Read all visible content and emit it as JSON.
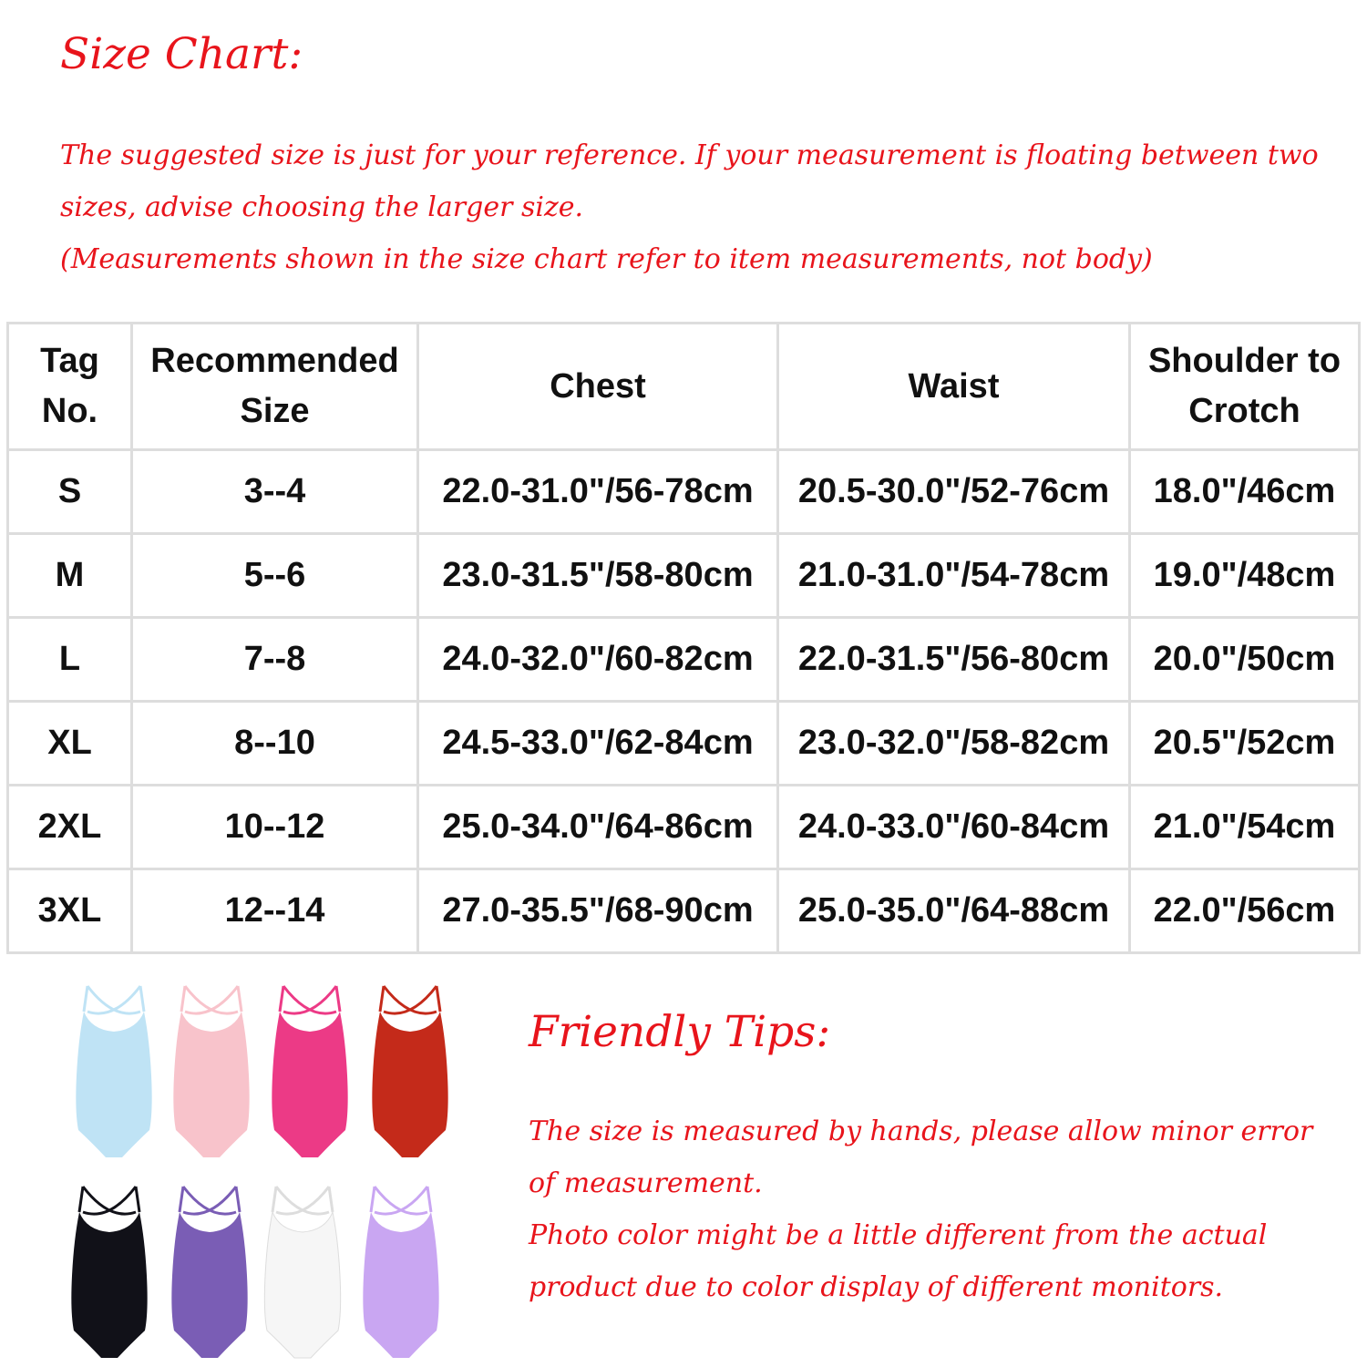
{
  "title": "Size Chart:",
  "intro": [
    "The suggested size is just for your reference. If your measurement is floating between two",
    "sizes, advise choosing the larger size.",
    "(Measurements shown in the size chart refer to item measurements, not body)"
  ],
  "table": {
    "headers": [
      "Tag No.",
      "Recommended Size",
      "Chest",
      "Waist",
      "Shoulder to Crotch"
    ],
    "rows": [
      [
        "S",
        "3--4",
        "22.0-31.0\"/56-78cm",
        "20.5-30.0\"/52-76cm",
        "18.0\"/46cm"
      ],
      [
        "M",
        "5--6",
        "23.0-31.5\"/58-80cm",
        "21.0-31.0\"/54-78cm",
        "19.0\"/48cm"
      ],
      [
        "L",
        "7--8",
        "24.0-32.0\"/60-82cm",
        "22.0-31.5\"/56-80cm",
        "20.0\"/50cm"
      ],
      [
        "XL",
        "8--10",
        "24.5-33.0\"/62-84cm",
        "23.0-32.0\"/58-82cm",
        "20.5\"/52cm"
      ],
      [
        "2XL",
        "10--12",
        "25.0-34.0\"/64-86cm",
        "24.0-33.0\"/60-84cm",
        "21.0\"/54cm"
      ],
      [
        "3XL",
        "12--14",
        "27.0-35.5\"/68-90cm",
        "25.0-35.0\"/64-88cm",
        "22.0\"/56cm"
      ]
    ]
  },
  "leotard_colors": [
    "#bfe3f5",
    "#f8c3cb",
    "#ec3a86",
    "#c42a1a",
    "#111118",
    "#7a5db5",
    "#f6f6f6",
    "#c9a6f2"
  ],
  "tips_title": "Friendly Tips:",
  "tips": [
    "The size is measured by hands, please allow minor error",
    "of measurement.",
    "Photo color might be a little different from the actual",
    "product due to color display of different monitors."
  ]
}
